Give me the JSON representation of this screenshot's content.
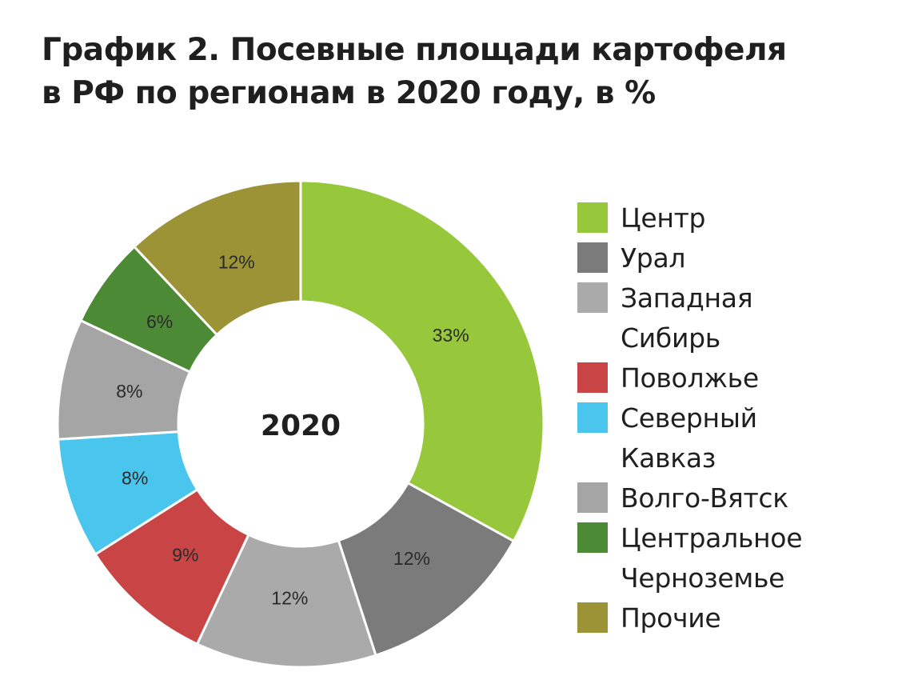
{
  "title_line1": "График 2. Посевные площади картофеля",
  "title_line2": "в РФ по регионам в 2020 году, в %",
  "chart_data": {
    "type": "pie",
    "variant": "donut",
    "center_label": "2020",
    "categories": [
      "Центр",
      "Урал",
      "Западная Сибирь",
      "Поволжье",
      "Северный Кавказ",
      "Волго-Вятск",
      "Центральное Черноземье",
      "Прочие"
    ],
    "values": [
      33,
      12,
      12,
      9,
      8,
      8,
      6,
      12
    ],
    "data_labels": [
      "33%",
      "12%",
      "12%",
      "9%",
      "8%",
      "8%",
      "6%",
      "12%"
    ],
    "colors": [
      "#97c83c",
      "#7a7b7a",
      "#aaaaaa",
      "#c94545",
      "#4ac6ee",
      "#a5a5a6",
      "#4d8a35",
      "#9b9335"
    ],
    "legend_placement": "right",
    "start_angle_degrees": 0,
    "direction": "clockwise"
  },
  "legend": [
    {
      "label": "Центр",
      "color": "#97c83c"
    },
    {
      "label": "Урал",
      "color": "#7a7b7a"
    },
    {
      "label": "Западная\nСибирь",
      "color": "#aaaaaa"
    },
    {
      "label": "Поволжье",
      "color": "#c94545"
    },
    {
      "label": "Северный\nКавказ",
      "color": "#4ac6ee"
    },
    {
      "label": "Волго-Вятск",
      "color": "#a5a5a6"
    },
    {
      "label": "Центральное\nЧерноземье",
      "color": "#4d8a35"
    },
    {
      "label": "Прочие",
      "color": "#9b9335"
    }
  ]
}
